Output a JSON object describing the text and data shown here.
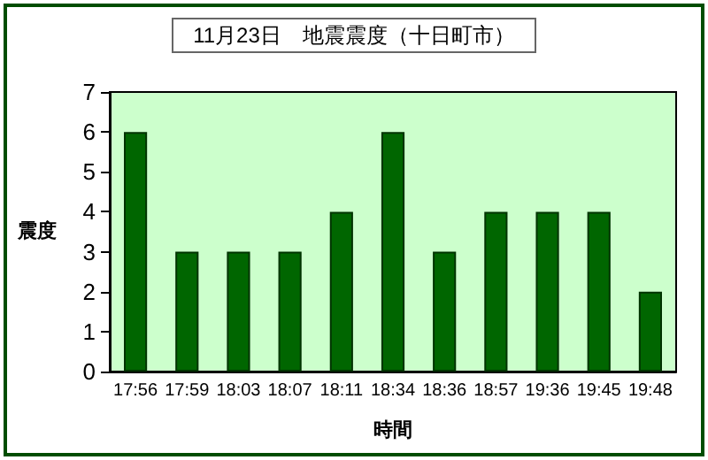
{
  "chart_data": {
    "type": "bar",
    "title": "11月23日　地震震度（十日町市）",
    "xlabel": "時間",
    "ylabel": "震度",
    "categories": [
      "17:56",
      "17:59",
      "18:03",
      "18:07",
      "18:11",
      "18:34",
      "18:36",
      "18:57",
      "19:36",
      "19:45",
      "19:48"
    ],
    "series": [
      {
        "color": "#006600",
        "values": [
          6,
          3,
          3,
          3,
          4,
          6,
          3,
          4,
          4,
          4,
          2
        ]
      }
    ],
    "ylim": [
      0,
      7
    ],
    "yticks": [
      0,
      1,
      2,
      3,
      4,
      5,
      6,
      7
    ],
    "grid": false
  }
}
